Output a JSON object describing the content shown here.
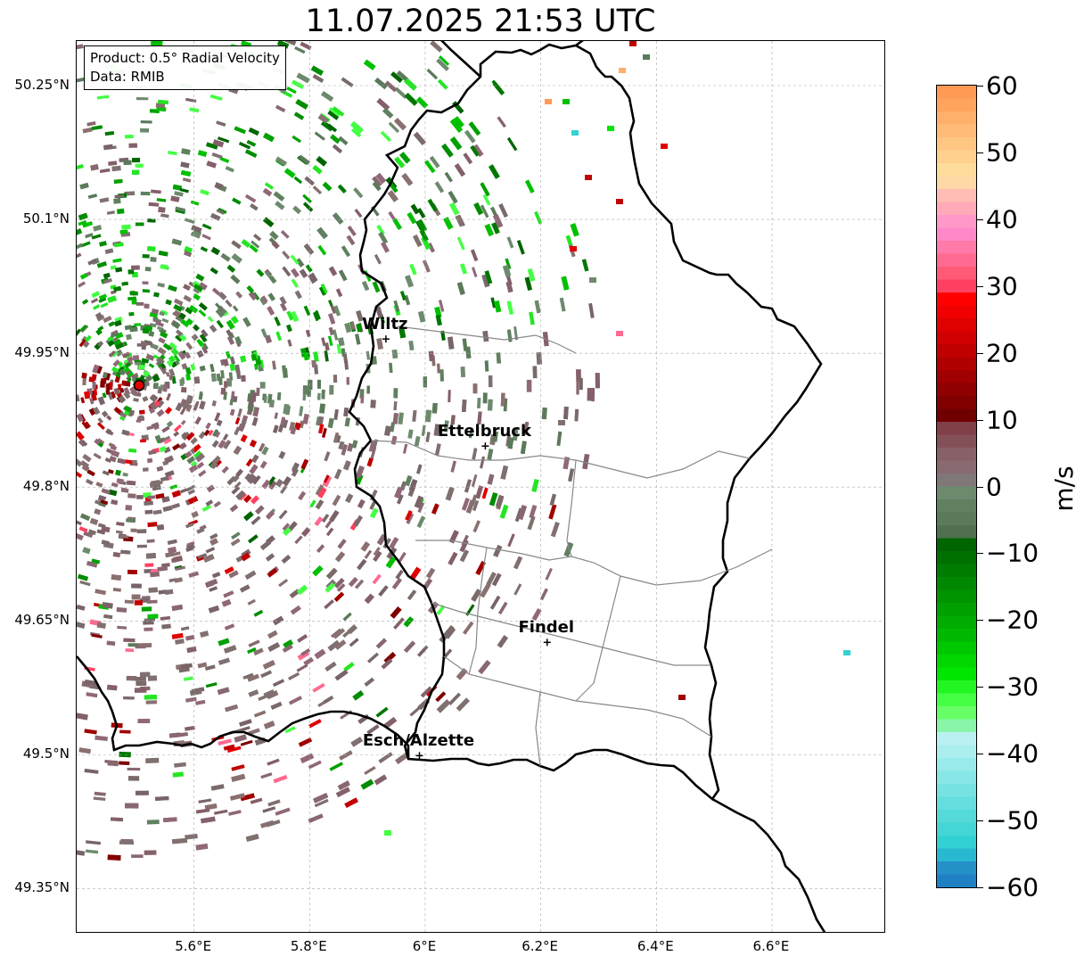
{
  "title": "11.07.2025 21:53 UTC",
  "info": {
    "product": "Product: 0.5° Radial Velocity",
    "data": "Data: RMIB"
  },
  "map": {
    "lat_ticks": [
      {
        "value": 50.25,
        "label": "50.25°N"
      },
      {
        "value": 50.1,
        "label": "50.1°N"
      },
      {
        "value": 49.95,
        "label": "49.95°N"
      },
      {
        "value": 49.8,
        "label": "49.8°N"
      },
      {
        "value": 49.65,
        "label": "49.65°N"
      },
      {
        "value": 49.5,
        "label": "49.5°N"
      },
      {
        "value": 49.35,
        "label": "49.35°N"
      }
    ],
    "lon_ticks": [
      {
        "value": 5.6,
        "label": "5.6°E"
      },
      {
        "value": 5.8,
        "label": "5.8°E"
      },
      {
        "value": 6.0,
        "label": "6°E"
      },
      {
        "value": 6.2,
        "label": "6.2°E"
      },
      {
        "value": 6.4,
        "label": "6.4°E"
      },
      {
        "value": 6.6,
        "label": "6.6°E"
      }
    ],
    "extent": {
      "lon_min": 5.4,
      "lon_max": 6.8,
      "lat_min": 49.3,
      "lat_max": 50.3
    },
    "radar_site": {
      "lon": 5.505,
      "lat": 49.914
    },
    "cities": [
      {
        "name": "Wiltz",
        "lon": 5.932,
        "lat": 49.966
      },
      {
        "name": "Ettelbruck",
        "lon": 6.104,
        "lat": 49.846
      },
      {
        "name": "Findel",
        "lon": 6.211,
        "lat": 49.626
      },
      {
        "name": "Esch/Alzette",
        "lon": 5.99,
        "lat": 49.499
      }
    ]
  },
  "colorbar": {
    "label": "m/s",
    "min": -60,
    "max": 60,
    "ticks": [
      {
        "value": 60,
        "label": "60"
      },
      {
        "value": 50,
        "label": "50"
      },
      {
        "value": 40,
        "label": "40"
      },
      {
        "value": 30,
        "label": "30"
      },
      {
        "value": 20,
        "label": "20"
      },
      {
        "value": 10,
        "label": "10"
      },
      {
        "value": 0,
        "label": "0"
      },
      {
        "value": -10,
        "label": "−10"
      },
      {
        "value": -20,
        "label": "−20"
      },
      {
        "value": -30,
        "label": "−30"
      },
      {
        "value": -40,
        "label": "−40"
      },
      {
        "value": -50,
        "label": "−50"
      },
      {
        "value": -60,
        "label": "−60"
      }
    ],
    "colors_top_to_bottom": [
      "#ff9a55",
      "#ffa45c",
      "#ffb06a",
      "#ffbb77",
      "#ffc682",
      "#ffd08e",
      "#ffdc9a",
      "#ffd8a8",
      "#ffbdb5",
      "#ffaab8",
      "#ff98c8",
      "#ff88c8",
      "#ff7aa8",
      "#ff6a90",
      "#ff5a78",
      "#ff4060",
      "#ff0000",
      "#f00000",
      "#e00000",
      "#d00000",
      "#c00000",
      "#b00000",
      "#a00000",
      "#900000",
      "#800000",
      "#700000",
      "#804048",
      "#845058",
      "#886068",
      "#886a70",
      "#807878",
      "#6e8a6e",
      "#608060",
      "#5a7a5a",
      "#507050",
      "#006400",
      "#007000",
      "#007c00",
      "#008800",
      "#009400",
      "#00a000",
      "#00ac00",
      "#00b800",
      "#00c800",
      "#00d800",
      "#00e600",
      "#22f522",
      "#44ff44",
      "#66ff66",
      "#88f5a8",
      "#bbf0f0",
      "#aaeeee",
      "#99eaea",
      "#88e6e6",
      "#77e2e2",
      "#66dede",
      "#55dada",
      "#44d6d6",
      "#33d2d2",
      "#28b8d0",
      "#2490c8",
      "#2080c4"
    ]
  }
}
